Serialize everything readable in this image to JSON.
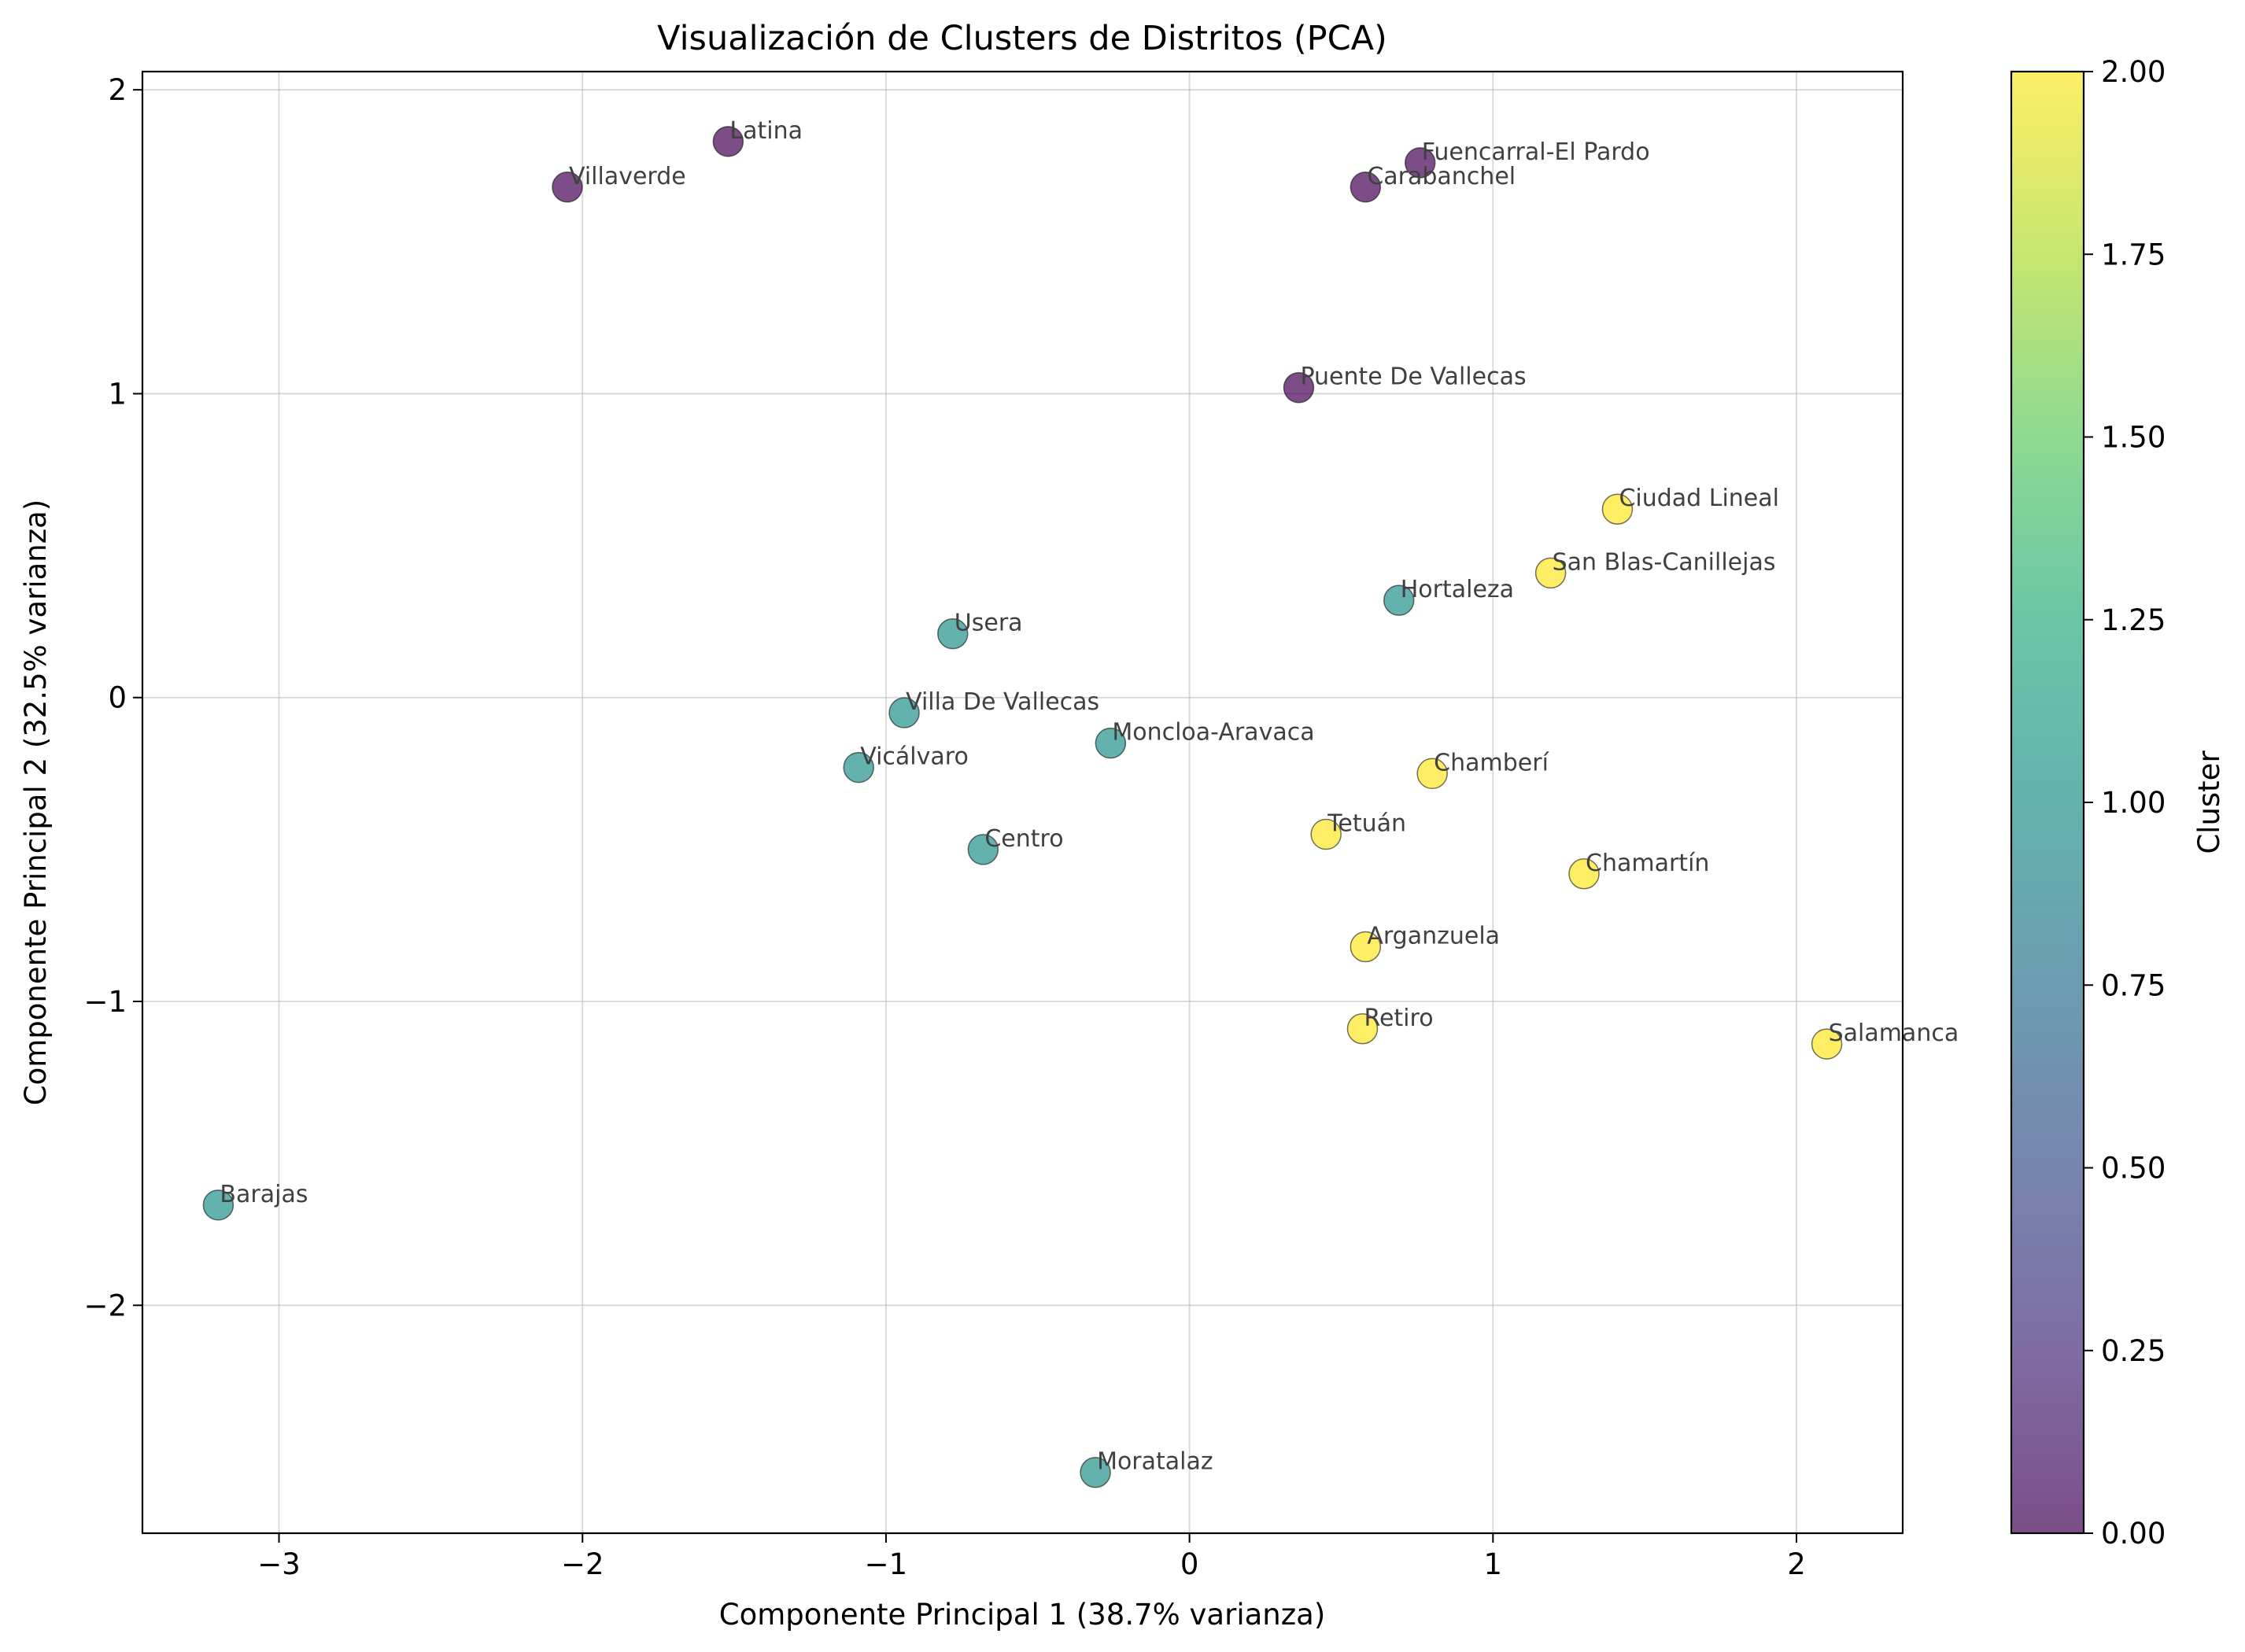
{
  "chart_data": {
    "type": "scatter",
    "title": "Visualización de Clusters de Distritos (PCA)",
    "xlabel": "Componente Principal 1 (38.7% varianza)",
    "ylabel": "Componente Principal 2 (32.5% varianza)",
    "xlim": [
      -3.45,
      2.35
    ],
    "ylim": [
      -2.75,
      2.06
    ],
    "xticks": [
      -3,
      -2,
      -1,
      0,
      1,
      2
    ],
    "yticks": [
      -2,
      -1,
      0,
      1,
      2
    ],
    "xtick_labels": [
      "−3",
      "−2",
      "−1",
      "0",
      "1",
      "2"
    ],
    "ytick_labels": [
      "−2",
      "−1",
      "0",
      "1",
      "2"
    ],
    "grid": true,
    "colorbar": {
      "label": "Cluster",
      "min": 0,
      "max": 2,
      "ticks": [
        0,
        0.25,
        0.5,
        0.75,
        1,
        1.25,
        1.5,
        1.75,
        2
      ],
      "tick_labels": [
        "0.00",
        "0.25",
        "0.50",
        "0.75",
        "1.00",
        "1.25",
        "1.50",
        "1.75",
        "2.00"
      ],
      "colormap": "viridis"
    },
    "cluster_colors": {
      "0": "#440154",
      "1": "#21918c",
      "2": "#fde725"
    },
    "points": [
      {
        "label": "Latina",
        "x": -1.52,
        "y": 1.83,
        "cluster": 0
      },
      {
        "label": "Villaverde",
        "x": -2.05,
        "y": 1.68,
        "cluster": 0
      },
      {
        "label": "Fuencarral-El Pardo",
        "x": 0.76,
        "y": 1.76,
        "cluster": 0
      },
      {
        "label": "Carabanchel",
        "x": 0.58,
        "y": 1.68,
        "cluster": 0
      },
      {
        "label": "Puente De Vallecas",
        "x": 0.36,
        "y": 1.02,
        "cluster": 0
      },
      {
        "label": "Ciudad Lineal",
        "x": 1.41,
        "y": 0.62,
        "cluster": 2
      },
      {
        "label": "San Blas-Canillejas",
        "x": 1.19,
        "y": 0.41,
        "cluster": 2
      },
      {
        "label": "Hortaleza",
        "x": 0.69,
        "y": 0.32,
        "cluster": 1
      },
      {
        "label": "Usera",
        "x": -0.78,
        "y": 0.21,
        "cluster": 1
      },
      {
        "label": "Villa De Vallecas",
        "x": -0.94,
        "y": -0.05,
        "cluster": 1
      },
      {
        "label": "Moncloa-Aravaca",
        "x": -0.26,
        "y": -0.15,
        "cluster": 1
      },
      {
        "label": "Vicálvaro",
        "x": -1.09,
        "y": -0.23,
        "cluster": 1
      },
      {
        "label": "Chamberí",
        "x": 0.8,
        "y": -0.25,
        "cluster": 2
      },
      {
        "label": "Tetuán",
        "x": 0.45,
        "y": -0.45,
        "cluster": 2
      },
      {
        "label": "Centro",
        "x": -0.68,
        "y": -0.5,
        "cluster": 1
      },
      {
        "label": "Chamartín",
        "x": 1.3,
        "y": -0.58,
        "cluster": 2
      },
      {
        "label": "Arganzuela",
        "x": 0.58,
        "y": -0.82,
        "cluster": 2
      },
      {
        "label": "Retiro",
        "x": 0.57,
        "y": -1.09,
        "cluster": 2
      },
      {
        "label": "Salamanca",
        "x": 2.1,
        "y": -1.14,
        "cluster": 2
      },
      {
        "label": "Barajas",
        "x": -3.2,
        "y": -1.67,
        "cluster": 1
      },
      {
        "label": "Moratalaz",
        "x": -0.31,
        "y": -2.55,
        "cluster": 1
      }
    ]
  }
}
